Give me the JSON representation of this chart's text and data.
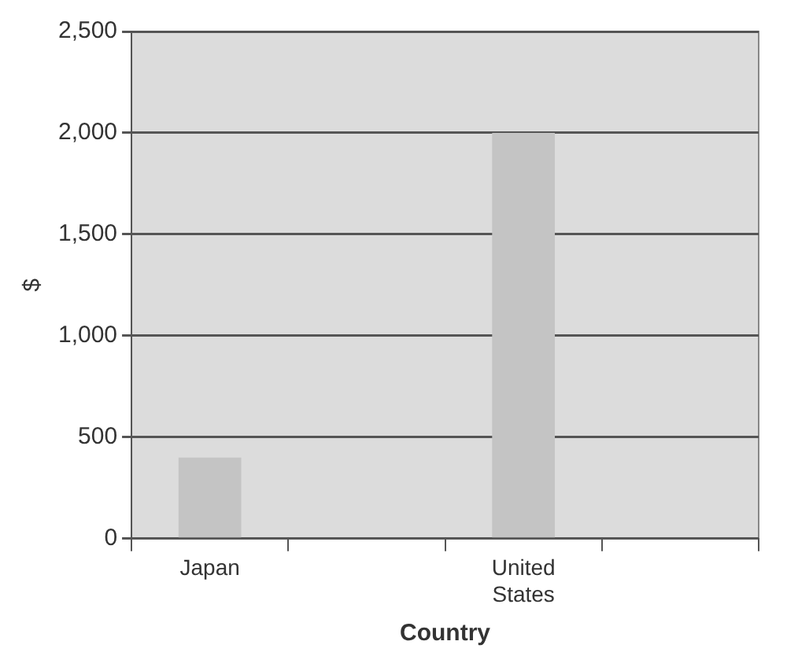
{
  "chart_data": {
    "type": "bar",
    "xlabel": "Country",
    "ylabel": "$",
    "categories": [
      "Japan",
      null,
      "United States",
      null
    ],
    "values": [
      400,
      null,
      2000,
      null
    ],
    "color": "#c4c4c4",
    "ylim": [
      0,
      2500
    ],
    "yticks": [
      {
        "value": 0,
        "label": "0"
      },
      {
        "value": 500,
        "label": "500"
      },
      {
        "value": 1000,
        "label": "1,000"
      },
      {
        "value": 1500,
        "label": "1,500"
      },
      {
        "value": 2000,
        "label": "2,000"
      },
      {
        "value": 2500,
        "label": "2,500"
      }
    ],
    "grid": "y",
    "legend": false
  }
}
